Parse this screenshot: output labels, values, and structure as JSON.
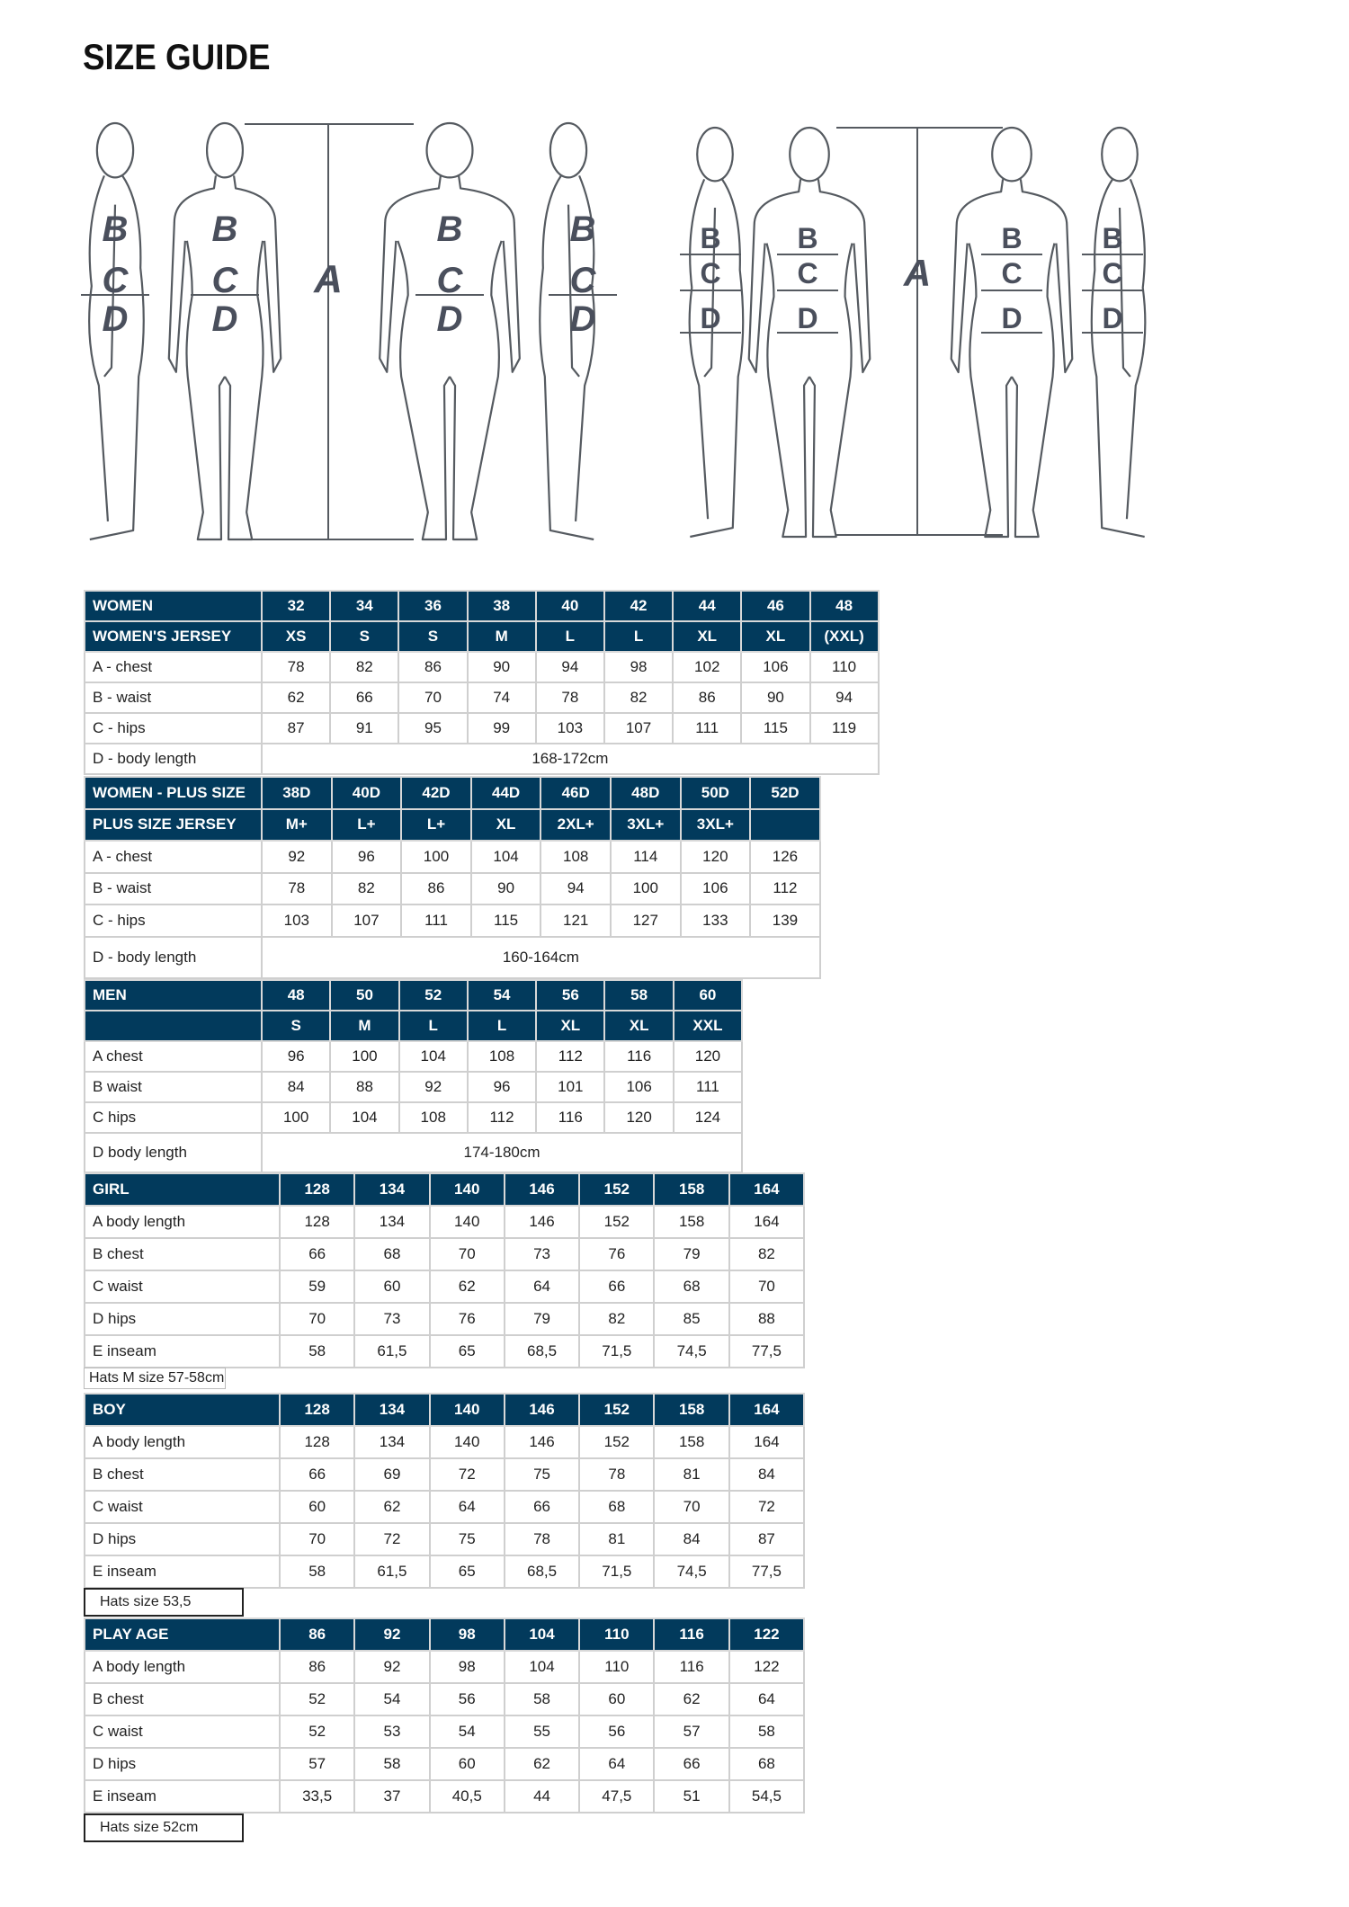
{
  "title": "SIZE GUIDE",
  "figures": {
    "adult_labels": {
      "a": "A",
      "b": "B",
      "c": "C",
      "d": "D"
    },
    "kid_labels": {
      "a": "A",
      "b": "B",
      "c": "C",
      "d": "D"
    },
    "line_color": "#555a60",
    "letter_color": "#4a4f5c"
  },
  "colors": {
    "header_bg": "#023a5c",
    "header_text": "#ffffff",
    "border": "#cfcfcf"
  },
  "tables": [
    {
      "id": "women",
      "header_rows": [
        [
          "WOMEN",
          "32",
          "34",
          "36",
          "38",
          "40",
          "42",
          "44",
          "46",
          "48"
        ],
        [
          "WOMEN'S JERSEY",
          "XS",
          "S",
          "S",
          "M",
          "L",
          "L",
          "XL",
          "XL",
          "(XXL)"
        ]
      ],
      "rows": [
        [
          "A - chest",
          "78",
          "82",
          "86",
          "90",
          "94",
          "98",
          "102",
          "106",
          "110"
        ],
        [
          "B - waist",
          "62",
          "66",
          "70",
          "74",
          "78",
          "82",
          "86",
          "90",
          "94"
        ],
        [
          "C - hips",
          "87",
          "91",
          "95",
          "99",
          "103",
          "107",
          "111",
          "115",
          "119"
        ]
      ],
      "span_row": [
        "D - body length",
        "168-172cm"
      ]
    },
    {
      "id": "women-plus",
      "header_rows": [
        [
          "WOMEN - PLUS SIZE",
          "38D",
          "40D",
          "42D",
          "44D",
          "46D",
          "48D",
          "50D",
          "52D"
        ],
        [
          "PLUS SIZE JERSEY",
          "M+",
          "L+",
          "L+",
          "XL",
          "2XL+",
          "3XL+",
          "3XL+",
          ""
        ]
      ],
      "rows": [
        [
          "A - chest",
          "92",
          "96",
          "100",
          "104",
          "108",
          "114",
          "120",
          "126"
        ],
        [
          "B - waist",
          "78",
          "82",
          "86",
          "90",
          "94",
          "100",
          "106",
          "112"
        ],
        [
          "C - hips",
          "103",
          "107",
          "111",
          "115",
          "121",
          "127",
          "133",
          "139"
        ]
      ],
      "span_row": [
        "D - body length",
        "160-164cm"
      ]
    },
    {
      "id": "men",
      "header_rows": [
        [
          "MEN",
          "48",
          "50",
          "52",
          "54",
          "56",
          "58",
          "60"
        ],
        [
          "",
          "S",
          "M",
          "L",
          "L",
          "XL",
          "XL",
          "XXL"
        ]
      ],
      "rows": [
        [
          "A chest",
          "96",
          "100",
          "104",
          "108",
          "112",
          "116",
          "120"
        ],
        [
          "B waist",
          "84",
          "88",
          "92",
          "96",
          "101",
          "106",
          "111"
        ],
        [
          "C hips",
          "100",
          "104",
          "108",
          "112",
          "116",
          "120",
          "124"
        ]
      ],
      "span_row": [
        "D body length",
        "174-180cm"
      ]
    },
    {
      "id": "girl",
      "header_rows": [
        [
          "GIRL",
          "128",
          "134",
          "140",
          "146",
          "152",
          "158",
          "164"
        ]
      ],
      "rows": [
        [
          "A body length",
          "128",
          "134",
          "140",
          "146",
          "152",
          "158",
          "164"
        ],
        [
          "B chest",
          "66",
          "68",
          "70",
          "73",
          "76",
          "79",
          "82"
        ],
        [
          "C waist",
          "59",
          "60",
          "62",
          "64",
          "66",
          "68",
          "70"
        ],
        [
          "D hips",
          "70",
          "73",
          "76",
          "79",
          "82",
          "85",
          "88"
        ],
        [
          "E inseam",
          "58",
          "61,5",
          "65",
          "68,5",
          "71,5",
          "74,5",
          "77,5"
        ]
      ],
      "note": "Hats M size 57-58cm"
    },
    {
      "id": "boy",
      "header_rows": [
        [
          "BOY",
          "128",
          "134",
          "140",
          "146",
          "152",
          "158",
          "164"
        ]
      ],
      "rows": [
        [
          "A body length",
          "128",
          "134",
          "140",
          "146",
          "152",
          "158",
          "164"
        ],
        [
          "B chest",
          "66",
          "69",
          "72",
          "75",
          "78",
          "81",
          "84"
        ],
        [
          "C waist",
          "60",
          "62",
          "64",
          "66",
          "68",
          "70",
          "72"
        ],
        [
          "D hips",
          "70",
          "72",
          "75",
          "78",
          "81",
          "84",
          "87"
        ],
        [
          "E inseam",
          "58",
          "61,5",
          "65",
          "68,5",
          "71,5",
          "74,5",
          "77,5"
        ]
      ],
      "note": "Hats size 53,5"
    },
    {
      "id": "play-age",
      "header_rows": [
        [
          "PLAY AGE",
          "86",
          "92",
          "98",
          "104",
          "110",
          "116",
          "122"
        ]
      ],
      "rows": [
        [
          "A body length",
          "86",
          "92",
          "98",
          "104",
          "110",
          "116",
          "122"
        ],
        [
          "B chest",
          "52",
          "54",
          "56",
          "58",
          "60",
          "62",
          "64"
        ],
        [
          "C waist",
          "52",
          "53",
          "54",
          "55",
          "56",
          "57",
          "58"
        ],
        [
          "D hips",
          "57",
          "58",
          "60",
          "62",
          "64",
          "66",
          "68"
        ],
        [
          "E inseam",
          "33,5",
          "37",
          "40,5",
          "44",
          "47,5",
          "51",
          "54,5"
        ]
      ],
      "note": "Hats size 52cm"
    }
  ]
}
